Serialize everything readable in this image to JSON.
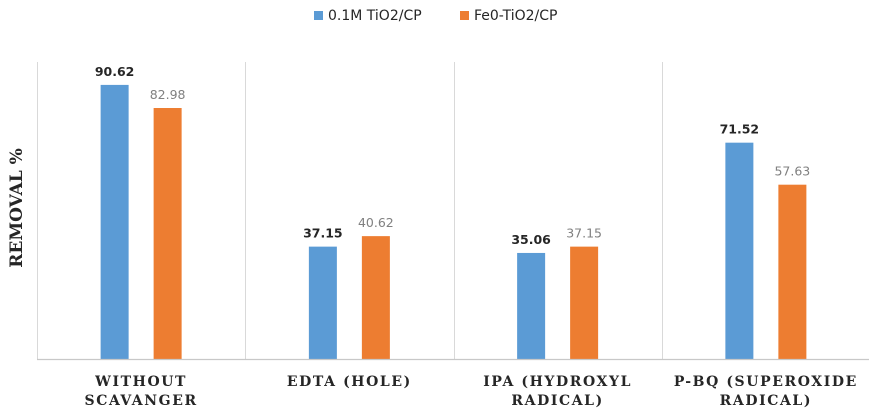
{
  "chart_data": {
    "type": "bar",
    "title": "",
    "xlabel": "",
    "ylabel": "REMOVAL %",
    "ylim": [
      0,
      100
    ],
    "grid": false,
    "legend_position": "top-center",
    "categories": [
      [
        "WITHOUT",
        "SCAVANGER"
      ],
      [
        "EDTA (HOLE)"
      ],
      [
        "IPA (HYDROXYL",
        "RADICAL)"
      ],
      [
        "P-BQ (SUPEROXIDE",
        "RADICAL)"
      ]
    ],
    "series": [
      {
        "name": "0.1M TiO2/CP",
        "color": "#5b9bd5",
        "values": [
          90.62,
          37.15,
          35.06,
          71.52
        ],
        "labels": [
          "90.62",
          "37.15",
          "35.06",
          "71.52"
        ],
        "label_style": "bold"
      },
      {
        "name": "Fe0-TiO2/CP",
        "color": "#ed7d31",
        "values": [
          82.98,
          40.62,
          37.15,
          57.63
        ],
        "labels": [
          "82.98",
          "40.62",
          "37.15",
          "57.63"
        ],
        "label_style": "gray"
      }
    ]
  }
}
